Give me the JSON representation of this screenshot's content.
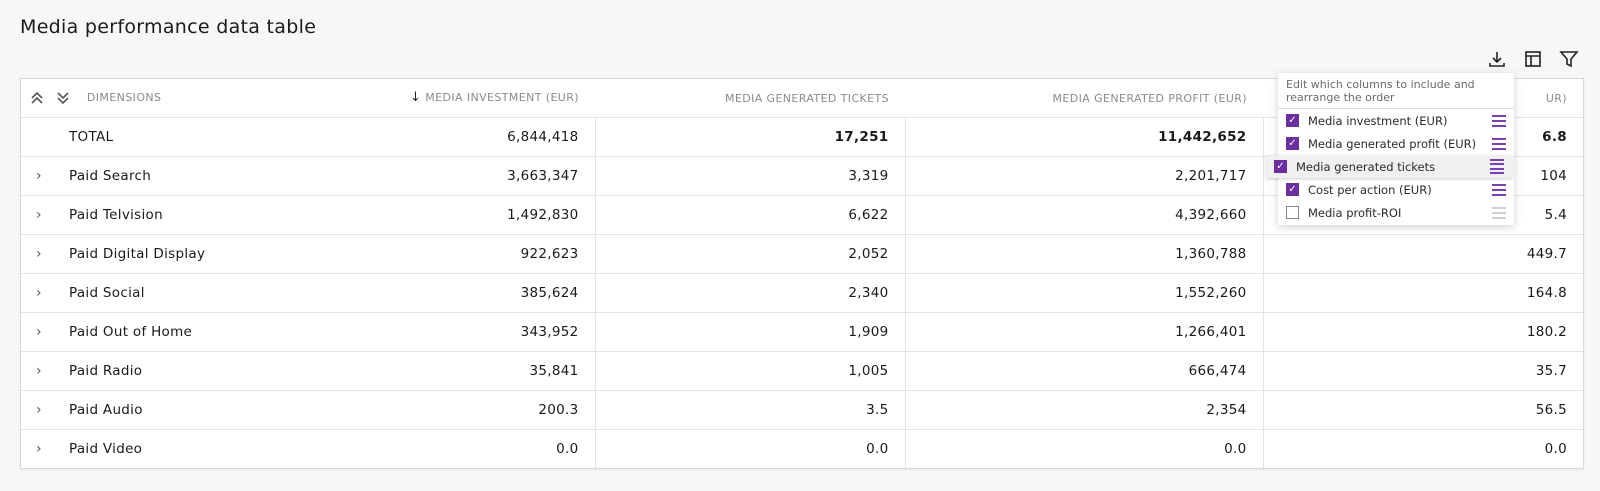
{
  "page": {
    "title": "Media performance data table"
  },
  "toolbar": {
    "download_icon": "download-icon",
    "columns_icon": "columns-icon",
    "filter_icon": "filter-icon"
  },
  "table": {
    "headers": {
      "dimensions": "DIMENSIONS",
      "col1": "MEDIA INVESTMENT (EUR)",
      "col2": "MEDIA GENERATED TICKETS",
      "col3": "MEDIA GENERATED PROFIT (EUR)",
      "col4": "UR)"
    },
    "sort_icon": "arrow-down-icon",
    "rows": [
      {
        "name": "TOTAL",
        "v1": "6,844,418",
        "v2": "17,251",
        "v3": "11,442,652",
        "v4": "6.8"
      },
      {
        "name": "Paid Search",
        "v1": "3,663,347",
        "v2": "3,319",
        "v3": "2,201,717",
        "v4": "104"
      },
      {
        "name": "Paid Telvision",
        "v1": "1,492,830",
        "v2": "6,622",
        "v3": "4,392,660",
        "v4": "5.4"
      },
      {
        "name": "Paid Digital Display",
        "v1": "922,623",
        "v2": "2,052",
        "v3": "1,360,788",
        "v4": "449.7"
      },
      {
        "name": "Paid Social",
        "v1": "385,624",
        "v2": "2,340",
        "v3": "1,552,260",
        "v4": "164.8"
      },
      {
        "name": "Paid Out of Home",
        "v1": "343,952",
        "v2": "1,909",
        "v3": "1,266,401",
        "v4": "180.2"
      },
      {
        "name": "Paid Radio",
        "v1": "35,841",
        "v2": "1,005",
        "v3": "666,474",
        "v4": "35.7"
      },
      {
        "name": "Paid Audio",
        "v1": "200.3",
        "v2": "3.5",
        "v3": "2,354",
        "v4": "56.5"
      },
      {
        "name": "Paid Video",
        "v1": "0.0",
        "v2": "0.0",
        "v3": "0.0",
        "v4": "0.0"
      }
    ]
  },
  "column_editor": {
    "hint": "Edit which columns to include and rearrange the order",
    "items": [
      {
        "label": "Media investment (EUR)",
        "checked": true
      },
      {
        "label": "Media generated profit (EUR)",
        "checked": true
      },
      {
        "label": "Media generated tickets",
        "checked": true,
        "dragging": true
      },
      {
        "label": "Cost per action (EUR)",
        "checked": true
      },
      {
        "label": "Media profit-ROI",
        "checked": false
      }
    ]
  },
  "colors": {
    "accent": "#6b2fa0"
  }
}
